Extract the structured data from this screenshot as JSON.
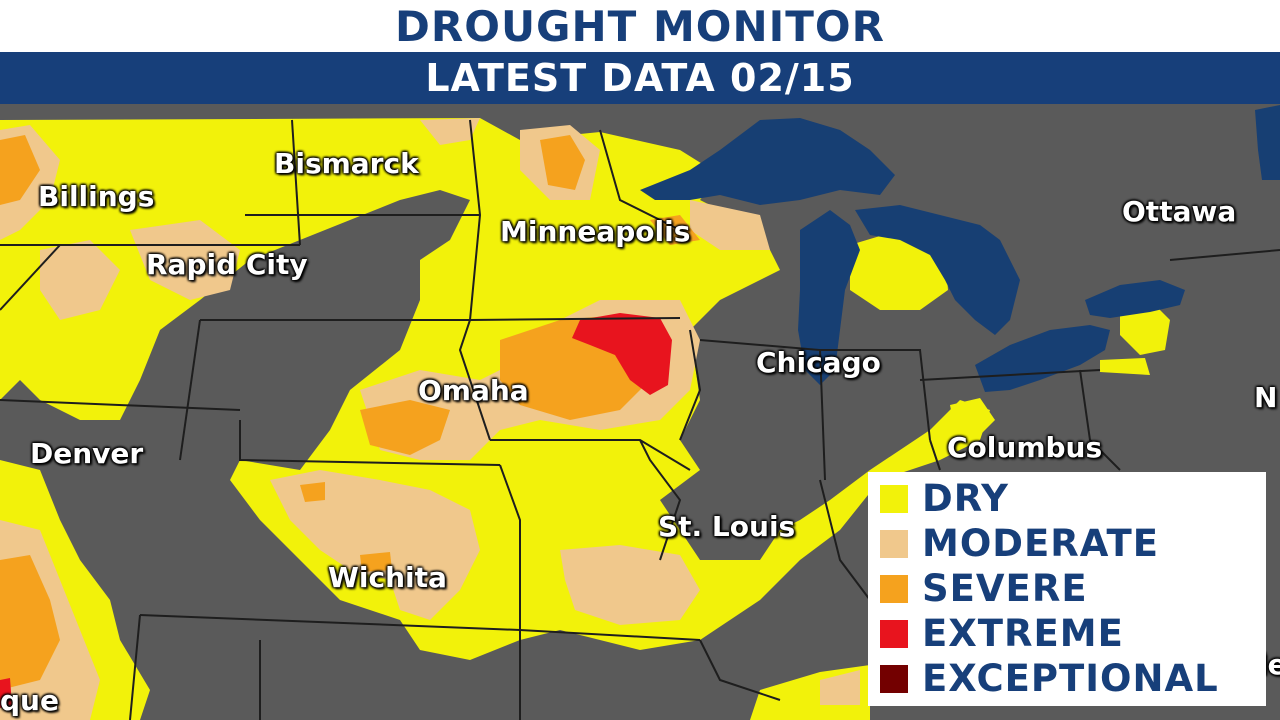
{
  "header": {
    "title": "DROUGHT MONITOR",
    "subtitle": "LATEST DATA 02/15"
  },
  "cities": [
    {
      "name": "Billings"
    },
    {
      "name": "Bismarck"
    },
    {
      "name": "Rapid City"
    },
    {
      "name": "Minneapolis"
    },
    {
      "name": "Ottawa"
    },
    {
      "name": "Chicago"
    },
    {
      "name": "Omaha"
    },
    {
      "name": "Denver"
    },
    {
      "name": "Columbus"
    },
    {
      "name": "St. Louis"
    },
    {
      "name": "Wichita"
    },
    {
      "name": "que"
    },
    {
      "name": "N"
    },
    {
      "name": "le"
    }
  ],
  "legend": {
    "items": [
      {
        "label": "DRY",
        "color": "#f2f20a"
      },
      {
        "label": "MODERATE",
        "color": "#f0c88c"
      },
      {
        "label": "SEVERE",
        "color": "#f5a21e"
      },
      {
        "label": "EXTREME",
        "color": "#e8141e"
      },
      {
        "label": "EXCEPTIONAL",
        "color": "#730000"
      }
    ]
  },
  "colors": {
    "land": "#5a5a5a",
    "water": "#173f73",
    "border": "#1e1e1e",
    "header_bg": "#173f7a",
    "header_text": "#ffffff"
  }
}
